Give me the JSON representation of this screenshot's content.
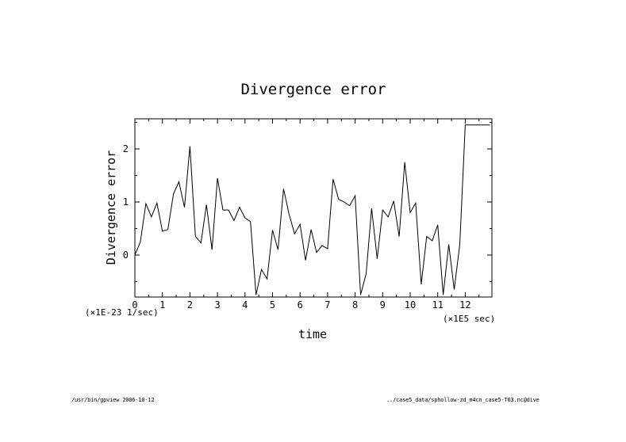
{
  "chart_data": {
    "type": "line",
    "title": "Divergence error",
    "xlabel": "time",
    "ylabel": "Divergence error",
    "x_scale_label": "(×1E5 sec)",
    "y_scale_label": "(×1E-23 1/sec)",
    "xlim": [
      0,
      12.9
    ],
    "ylim": [
      -0.75,
      2.6
    ],
    "x_ticks": [
      0,
      1,
      2,
      3,
      4,
      5,
      6,
      7,
      8,
      9,
      10,
      11,
      12
    ],
    "y_ticks": [
      0,
      1,
      2
    ],
    "grid": false,
    "series": [
      {
        "x": [
          0,
          0.2,
          0.4,
          0.6,
          0.8,
          1.0,
          1.2,
          1.4,
          1.6,
          1.8,
          2.0,
          2.2,
          2.4,
          2.6,
          2.8,
          3.0,
          3.2,
          3.4,
          3.6,
          3.8,
          4.0,
          4.2,
          4.4,
          4.6,
          4.8,
          5.0,
          5.2,
          5.4,
          5.6,
          5.8,
          6.0,
          6.2,
          6.4,
          6.6,
          6.8,
          7.0,
          7.2,
          7.4,
          7.6,
          7.8,
          8.0,
          8.2,
          8.4,
          8.6,
          8.8,
          9.0,
          9.2,
          9.4,
          9.6,
          9.8,
          10.0,
          10.2,
          10.4,
          10.6,
          10.8,
          11.0,
          11.2,
          11.4,
          11.6,
          11.8,
          12.0,
          12.2,
          12.4,
          12.6,
          12.8,
          12.9
        ],
        "values": [
          0.0,
          0.25,
          0.97,
          0.72,
          0.98,
          0.45,
          0.48,
          1.15,
          1.38,
          0.9,
          2.05,
          0.35,
          0.23,
          0.95,
          0.1,
          1.45,
          0.85,
          0.85,
          0.65,
          0.9,
          0.7,
          0.63,
          -0.75,
          -0.27,
          -0.45,
          0.47,
          0.1,
          1.25,
          0.77,
          0.4,
          0.58,
          -0.1,
          0.48,
          0.05,
          0.18,
          0.12,
          1.43,
          1.05,
          1.0,
          0.93,
          1.12,
          -0.75,
          -0.35,
          0.88,
          -0.07,
          0.85,
          0.72,
          1.02,
          0.35,
          1.75,
          0.8,
          0.98,
          -0.55,
          0.35,
          0.27,
          0.57,
          -0.75,
          0.2,
          -0.65,
          0.2,
          2.45,
          2.45,
          2.45,
          2.45,
          2.45,
          2.45
        ]
      }
    ]
  },
  "footer": {
    "left": "/usr/bin/gpview  2006-10-12",
    "right": "../case5_data/sphollow-zd_m4cn_case5-T63.nc@dive"
  }
}
